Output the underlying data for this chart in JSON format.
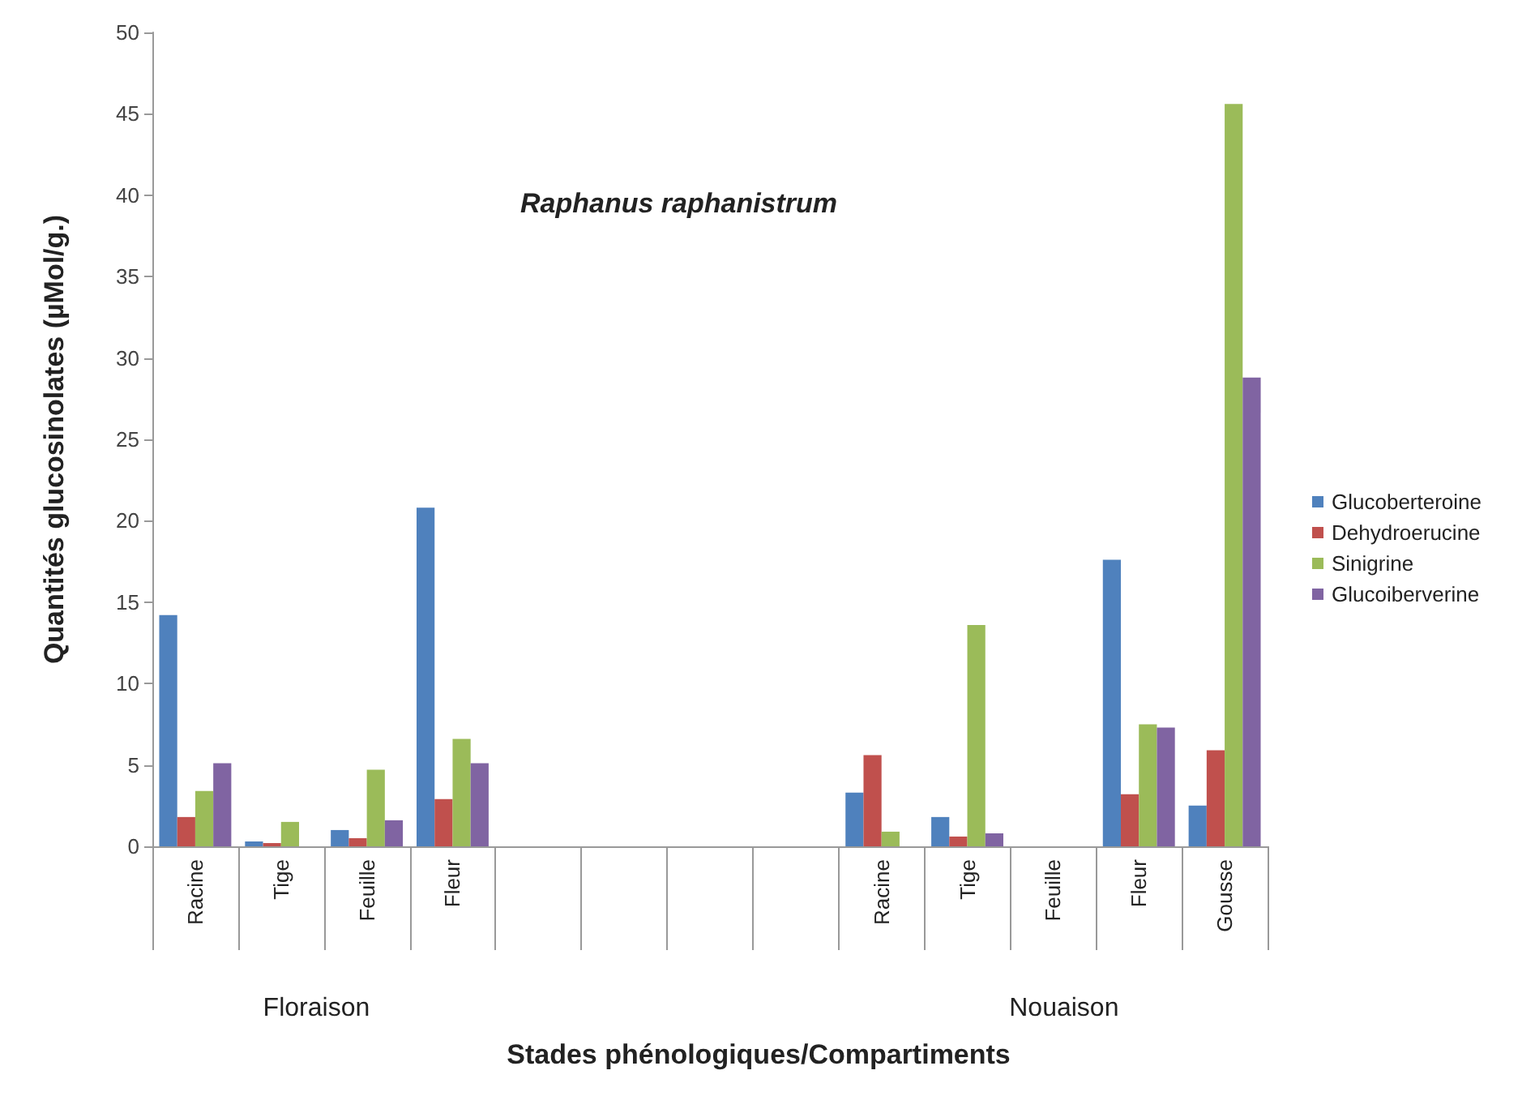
{
  "chart_data": {
    "type": "bar",
    "title": "Raphanus raphanistrum",
    "xlabel": "Stades phénologiques/Compartiments",
    "ylabel": "Quantités glucosinolates (µMol/g.)",
    "categories": [
      "Racine",
      "Tige",
      "Feuille",
      "Fleur",
      null,
      null,
      null,
      null,
      "Racine",
      "Tige",
      "Feuille",
      "Fleur",
      "Gousse"
    ],
    "series": [
      {
        "name": "Glucoberteroine",
        "color": "#4f81bd",
        "values": [
          14.2,
          0.3,
          1.0,
          20.8,
          null,
          null,
          null,
          null,
          3.3,
          1.8,
          null,
          17.6,
          2.5
        ]
      },
      {
        "name": "Dehydroerucine",
        "color": "#c0504d",
        "values": [
          1.8,
          0.2,
          0.5,
          2.9,
          null,
          null,
          null,
          null,
          5.6,
          0.6,
          null,
          3.2,
          5.9
        ]
      },
      {
        "name": "Sinigrine",
        "color": "#9bbb59",
        "values": [
          3.4,
          1.5,
          4.7,
          6.6,
          null,
          null,
          null,
          null,
          0.9,
          13.6,
          null,
          7.5,
          45.6
        ]
      },
      {
        "name": "Glucoiberverine",
        "color": "#8064a2",
        "values": [
          5.1,
          null,
          1.6,
          5.1,
          null,
          null,
          null,
          null,
          null,
          0.8,
          null,
          7.3,
          28.8
        ]
      }
    ],
    "annotations": [
      "Floraison",
      "Nouaison"
    ],
    "ylim": [
      0,
      50
    ],
    "yticks": [
      0,
      5,
      10,
      15,
      20,
      25,
      30,
      35,
      40,
      45,
      50
    ],
    "grid": false,
    "legend": "right"
  }
}
